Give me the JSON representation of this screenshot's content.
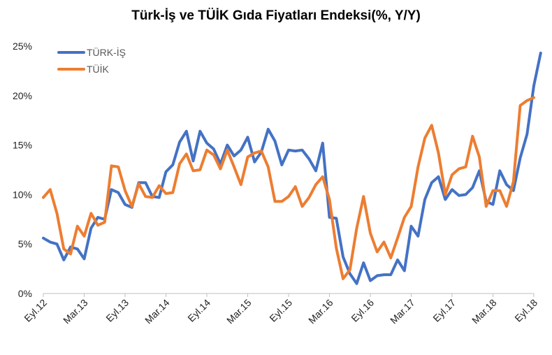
{
  "chart_data": {
    "type": "line",
    "title": "Türk-İş ve TÜİK Gıda Fiyatları Endeksi(%, Y/Y)",
    "xlabel": "",
    "ylabel": "",
    "ylim": [
      0,
      25
    ],
    "y_ticks": [
      "0%",
      "5%",
      "10%",
      "15%",
      "20%",
      "25%"
    ],
    "x_tick_labels": [
      "Eyl.12",
      "Mar.13",
      "Eyl.13",
      "Mar.14",
      "Eyl.14",
      "Mar.15",
      "Eyl.15",
      "Mar.16",
      "Eyl.16",
      "Mar.17",
      "Eyl.17",
      "Mar.18",
      "Eyl.18"
    ],
    "legend_position": "top-left",
    "grid": false,
    "series": [
      {
        "name": "TÜRK-İŞ",
        "color": "#4472C4",
        "values": [
          5.6,
          5.2,
          5.0,
          3.4,
          4.7,
          4.5,
          3.5,
          6.6,
          7.7,
          7.5,
          10.5,
          10.2,
          9.0,
          8.7,
          11.2,
          11.2,
          9.8,
          9.7,
          12.3,
          13.0,
          15.3,
          16.4,
          13.4,
          16.4,
          15.2,
          14.6,
          13.1,
          15.0,
          13.9,
          14.5,
          15.8,
          13.3,
          14.3,
          16.6,
          15.4,
          13.0,
          14.5,
          14.4,
          14.5,
          13.6,
          12.4,
          15.2,
          7.7,
          7.6,
          3.7,
          2.0,
          1.0,
          3.1,
          1.3,
          1.8,
          1.9,
          1.9,
          3.4,
          2.3,
          6.8,
          5.8,
          9.5,
          11.2,
          11.8,
          9.5,
          10.5,
          9.9,
          10.0,
          10.7,
          12.4,
          9.3,
          9.0,
          12.4,
          11.0,
          10.4,
          13.7,
          16.1,
          21.0,
          24.3
        ]
      },
      {
        "name": "TÜİK",
        "color": "#ED7D31",
        "values": [
          9.7,
          10.5,
          8.1,
          4.5,
          4.0,
          6.8,
          5.8,
          8.1,
          6.9,
          7.2,
          12.9,
          12.8,
          10.4,
          8.8,
          11.1,
          9.8,
          9.7,
          10.9,
          10.1,
          10.2,
          13.1,
          14.1,
          12.4,
          12.5,
          14.5,
          14.0,
          12.6,
          14.5,
          12.8,
          11.0,
          13.8,
          14.2,
          14.4,
          12.8,
          9.3,
          9.3,
          9.8,
          10.8,
          8.8,
          9.7,
          11.0,
          11.8,
          9.5,
          4.6,
          1.5,
          2.4,
          6.6,
          9.8,
          6.1,
          4.2,
          5.2,
          3.6,
          5.6,
          7.7,
          8.8,
          12.8,
          15.7,
          17.0,
          14.2,
          10.0,
          12.0,
          12.6,
          12.8,
          15.9,
          13.8,
          8.8,
          10.4,
          10.4,
          8.8,
          11.3,
          19.0,
          19.5,
          19.8
        ]
      }
    ]
  }
}
